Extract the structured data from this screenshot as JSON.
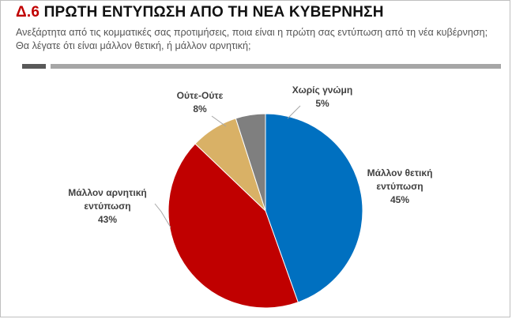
{
  "header": {
    "code": "Δ.6",
    "title": "ΠΡΩΤΗ ΕΝΤΥΠΩΣΗ ΑΠΟ ΤΗ ΝΕΑ ΚΥΒΕΡΝΗΣΗ",
    "subtitle": "Ανεξάρτητα από τις κομματικές σας προτιμήσεις, ποια είναι η πρώτη σας εντύπωση από τη νέα κυβέρνηση; Θα λέγατε ότι είναι μάλλον θετική, ή μάλλον αρνητική;"
  },
  "colors": {
    "accent": "#c00000",
    "bar_dark": "#595959",
    "bar_light": "#a6a6a6"
  },
  "chart_data": {
    "type": "pie",
    "legend": "none",
    "slices": [
      {
        "label_lines": [
          "Μάλλον θετική",
          "εντύπωση"
        ],
        "value": 45,
        "value_label": "45%",
        "color": "#0070c0"
      },
      {
        "label_lines": [
          "Μάλλον αρνητική",
          "εντύπωση"
        ],
        "value": 43,
        "value_label": "43%",
        "color": "#c00000"
      },
      {
        "label_lines": [
          "Ούτε-Ούτε"
        ],
        "value": 8,
        "value_label": "8%",
        "color": "#d9b166"
      },
      {
        "label_lines": [
          "Χωρίς γνώμη"
        ],
        "value": 5,
        "value_label": "5%",
        "color": "#7f7f7f"
      }
    ]
  }
}
